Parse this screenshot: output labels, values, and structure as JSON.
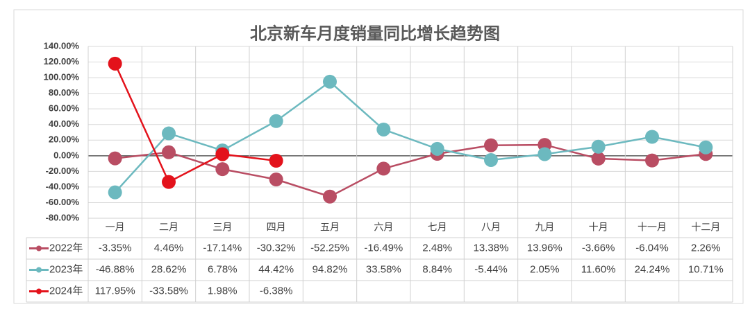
{
  "chart_data": {
    "type": "line",
    "title": "北京新车月度销量同比增长趋势图",
    "categories": [
      "一月",
      "二月",
      "三月",
      "四月",
      "五月",
      "六月",
      "七月",
      "八月",
      "九月",
      "十月",
      "十一月",
      "十二月"
    ],
    "series": [
      {
        "name": "2022年",
        "color": "#b94d63",
        "values": [
          -3.35,
          4.46,
          -17.14,
          -30.32,
          -52.25,
          -16.49,
          2.48,
          13.38,
          13.96,
          -3.66,
          -6.04,
          2.26
        ],
        "value_labels": [
          "-3.35%",
          "4.46%",
          "-17.14%",
          "-30.32%",
          "-52.25%",
          "-16.49%",
          "2.48%",
          "13.38%",
          "13.96%",
          "-3.66%",
          "-6.04%",
          "2.26%"
        ]
      },
      {
        "name": "2023年",
        "color": "#6cb9bf",
        "values": [
          -46.88,
          28.62,
          6.78,
          44.42,
          94.82,
          33.58,
          8.84,
          -5.44,
          2.05,
          11.6,
          24.24,
          10.71
        ],
        "value_labels": [
          "-46.88%",
          "28.62%",
          "6.78%",
          "44.42%",
          "94.82%",
          "33.58%",
          "8.84%",
          "-5.44%",
          "2.05%",
          "11.60%",
          "24.24%",
          "10.71%"
        ]
      },
      {
        "name": "2024年",
        "color": "#e3121b",
        "values": [
          117.95,
          -33.58,
          1.98,
          -6.38,
          null,
          null,
          null,
          null,
          null,
          null,
          null,
          null
        ],
        "value_labels": [
          "117.95%",
          "-33.58%",
          "1.98%",
          "-6.38%",
          null,
          null,
          null,
          null,
          null,
          null,
          null,
          null
        ]
      }
    ],
    "ylim": [
      -80,
      140
    ],
    "yticks": [
      {
        "value": -80,
        "label": "-80.00%"
      },
      {
        "value": -60,
        "label": "-60.00%"
      },
      {
        "value": -40,
        "label": "-40.00%"
      },
      {
        "value": -20,
        "label": "-20.00%"
      },
      {
        "value": 0,
        "label": "0.00%"
      },
      {
        "value": 20,
        "label": "20.00%"
      },
      {
        "value": 40,
        "label": "40.00%"
      },
      {
        "value": 60,
        "label": "60.00%"
      },
      {
        "value": 80,
        "label": "80.00%"
      },
      {
        "value": 100,
        "label": "100.00%"
      },
      {
        "value": 120,
        "label": "120.00%"
      },
      {
        "value": 140,
        "label": "140.00%"
      }
    ],
    "grid": true
  }
}
